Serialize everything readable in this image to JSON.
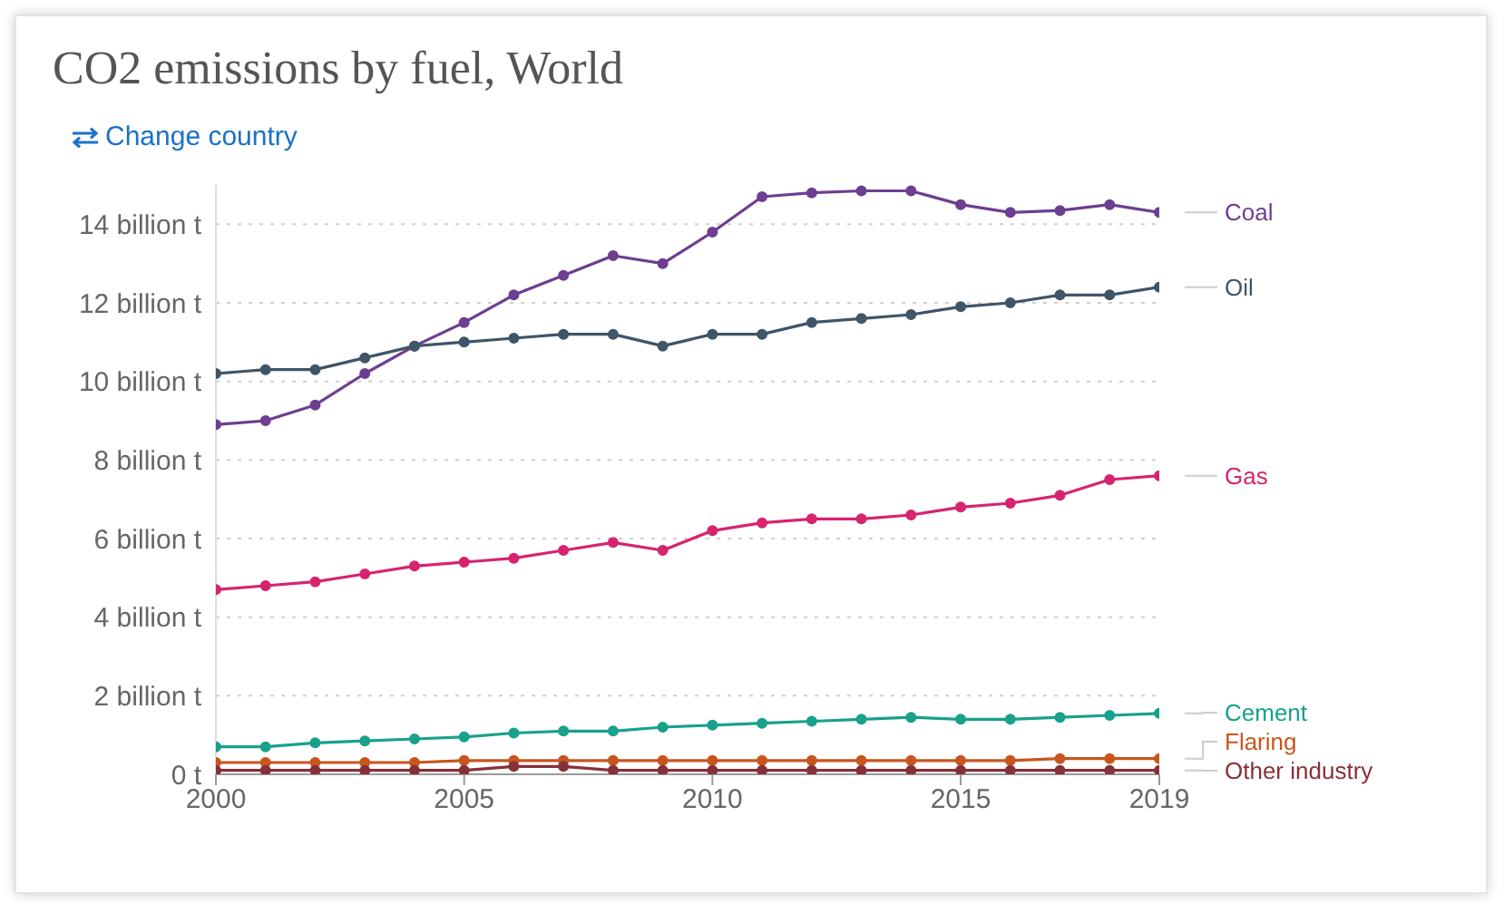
{
  "chart_data": {
    "type": "line",
    "title": "CO2 emissions by fuel, World",
    "annotations": [
      "Change country"
    ],
    "x": [
      2000,
      2001,
      2002,
      2003,
      2004,
      2005,
      2006,
      2007,
      2008,
      2009,
      2010,
      2011,
      2012,
      2013,
      2014,
      2015,
      2016,
      2017,
      2018,
      2019
    ],
    "xlim": [
      2000,
      2019
    ],
    "xticks": [
      2000,
      2005,
      2010,
      2015,
      2019
    ],
    "ylim": [
      0,
      15
    ],
    "yticks": [
      {
        "value": 0,
        "label": "0 t"
      },
      {
        "value": 2,
        "label": "2 billion t"
      },
      {
        "value": 4,
        "label": "4 billion t"
      },
      {
        "value": 6,
        "label": "6 billion t"
      },
      {
        "value": 8,
        "label": "8 billion t"
      },
      {
        "value": 10,
        "label": "10 billion t"
      },
      {
        "value": 12,
        "label": "12 billion t"
      },
      {
        "value": 14,
        "label": "14 billion t"
      }
    ],
    "grid": "y",
    "marker": "circle",
    "line_style": "solid",
    "series": [
      {
        "name": "Coal",
        "color": "#6d3e91",
        "values": [
          8.9,
          9.0,
          9.4,
          10.2,
          10.9,
          11.5,
          12.2,
          12.7,
          13.2,
          13.0,
          13.8,
          14.7,
          14.8,
          14.85,
          14.85,
          14.5,
          14.3,
          14.35,
          14.5,
          14.3
        ]
      },
      {
        "name": "Oil",
        "color": "#3f5568",
        "values": [
          10.2,
          10.3,
          10.3,
          10.6,
          10.9,
          11.0,
          11.1,
          11.2,
          11.2,
          10.9,
          11.2,
          11.2,
          11.5,
          11.6,
          11.7,
          11.9,
          12.0,
          12.2,
          12.2,
          12.4
        ]
      },
      {
        "name": "Gas",
        "color": "#d6246e",
        "values": [
          4.7,
          4.8,
          4.9,
          5.1,
          5.3,
          5.4,
          5.5,
          5.7,
          5.9,
          5.7,
          6.2,
          6.4,
          6.5,
          6.5,
          6.6,
          6.8,
          6.9,
          7.1,
          7.5,
          7.6
        ]
      },
      {
        "name": "Cement",
        "color": "#18a18b",
        "values": [
          0.7,
          0.7,
          0.8,
          0.85,
          0.9,
          0.95,
          1.05,
          1.1,
          1.1,
          1.2,
          1.25,
          1.3,
          1.35,
          1.4,
          1.45,
          1.4,
          1.4,
          1.45,
          1.5,
          1.55
        ]
      },
      {
        "name": "Flaring",
        "color": "#c8551e",
        "values": [
          0.3,
          0.3,
          0.3,
          0.3,
          0.3,
          0.35,
          0.35,
          0.35,
          0.35,
          0.35,
          0.35,
          0.35,
          0.35,
          0.35,
          0.35,
          0.35,
          0.35,
          0.4,
          0.4,
          0.4
        ]
      },
      {
        "name": "Other industry",
        "color": "#883039",
        "values": [
          0.1,
          0.1,
          0.1,
          0.1,
          0.1,
          0.1,
          0.2,
          0.2,
          0.1,
          0.1,
          0.1,
          0.1,
          0.1,
          0.1,
          0.1,
          0.1,
          0.1,
          0.1,
          0.1,
          0.1
        ]
      }
    ]
  }
}
